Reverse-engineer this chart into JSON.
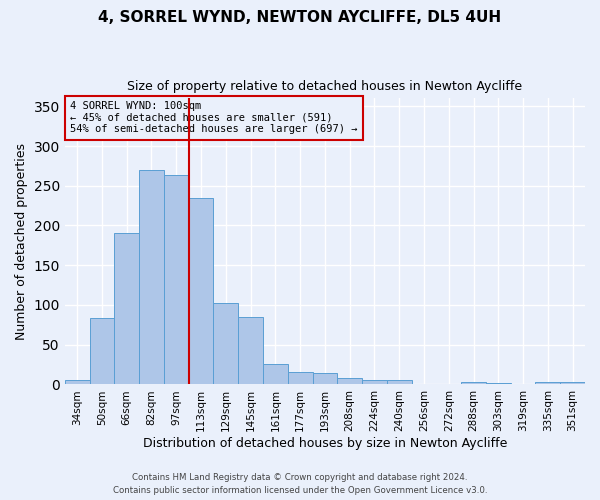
{
  "title": "4, SORREL WYND, NEWTON AYCLIFFE, DL5 4UH",
  "subtitle": "Size of property relative to detached houses in Newton Aycliffe",
  "xlabel": "Distribution of detached houses by size in Newton Aycliffe",
  "ylabel": "Number of detached properties",
  "bar_labels": [
    "34sqm",
    "50sqm",
    "66sqm",
    "82sqm",
    "97sqm",
    "113sqm",
    "129sqm",
    "145sqm",
    "161sqm",
    "177sqm",
    "193sqm",
    "208sqm",
    "224sqm",
    "240sqm",
    "256sqm",
    "272sqm",
    "288sqm",
    "303sqm",
    "319sqm",
    "335sqm",
    "351sqm"
  ],
  "bar_heights": [
    5,
    83,
    190,
    270,
    263,
    234,
    103,
    85,
    26,
    16,
    15,
    8,
    6,
    5,
    1,
    0,
    3,
    2,
    0,
    3,
    3
  ],
  "bar_color": "#aec6e8",
  "bar_edge_color": "#5a9fd4",
  "vline_color": "#cc0000",
  "annotation_title": "4 SORREL WYND: 100sqm",
  "annotation_line1": "← 45% of detached houses are smaller (591)",
  "annotation_line2": "54% of semi-detached houses are larger (697) →",
  "annotation_box_color": "#cc0000",
  "ylim": [
    0,
    360
  ],
  "yticks": [
    0,
    50,
    100,
    150,
    200,
    250,
    300,
    350
  ],
  "footer1": "Contains HM Land Registry data © Crown copyright and database right 2024.",
  "footer2": "Contains public sector information licensed under the Open Government Licence v3.0.",
  "bg_color": "#eaf0fb",
  "grid_color": "#ffffff"
}
